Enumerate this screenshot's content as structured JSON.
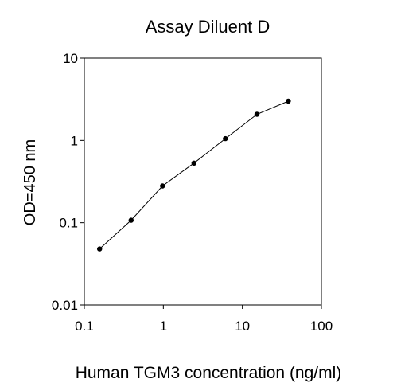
{
  "chart_data": {
    "type": "line",
    "title": "Assay Diluent D",
    "xlabel": "Human TGM3 concentration (ng/ml)",
    "ylabel": "OD=450 nm",
    "xscale": "log",
    "yscale": "log",
    "xlim": [
      0.1,
      100
    ],
    "ylim": [
      0.01,
      10
    ],
    "xticks": [
      "0.1",
      "1",
      "10",
      "100"
    ],
    "yticks": [
      "0.01",
      "0.1",
      "1",
      "10"
    ],
    "grid": false,
    "legend": "none",
    "line_color": "#000000",
    "marker": "filled-circle",
    "series": [
      {
        "x": [
          0.156,
          0.391,
          0.977,
          2.44,
          6.1,
          15.3,
          38.1
        ],
        "y": [
          0.048,
          0.107,
          0.28,
          0.53,
          1.05,
          2.08,
          3.0
        ]
      }
    ]
  }
}
